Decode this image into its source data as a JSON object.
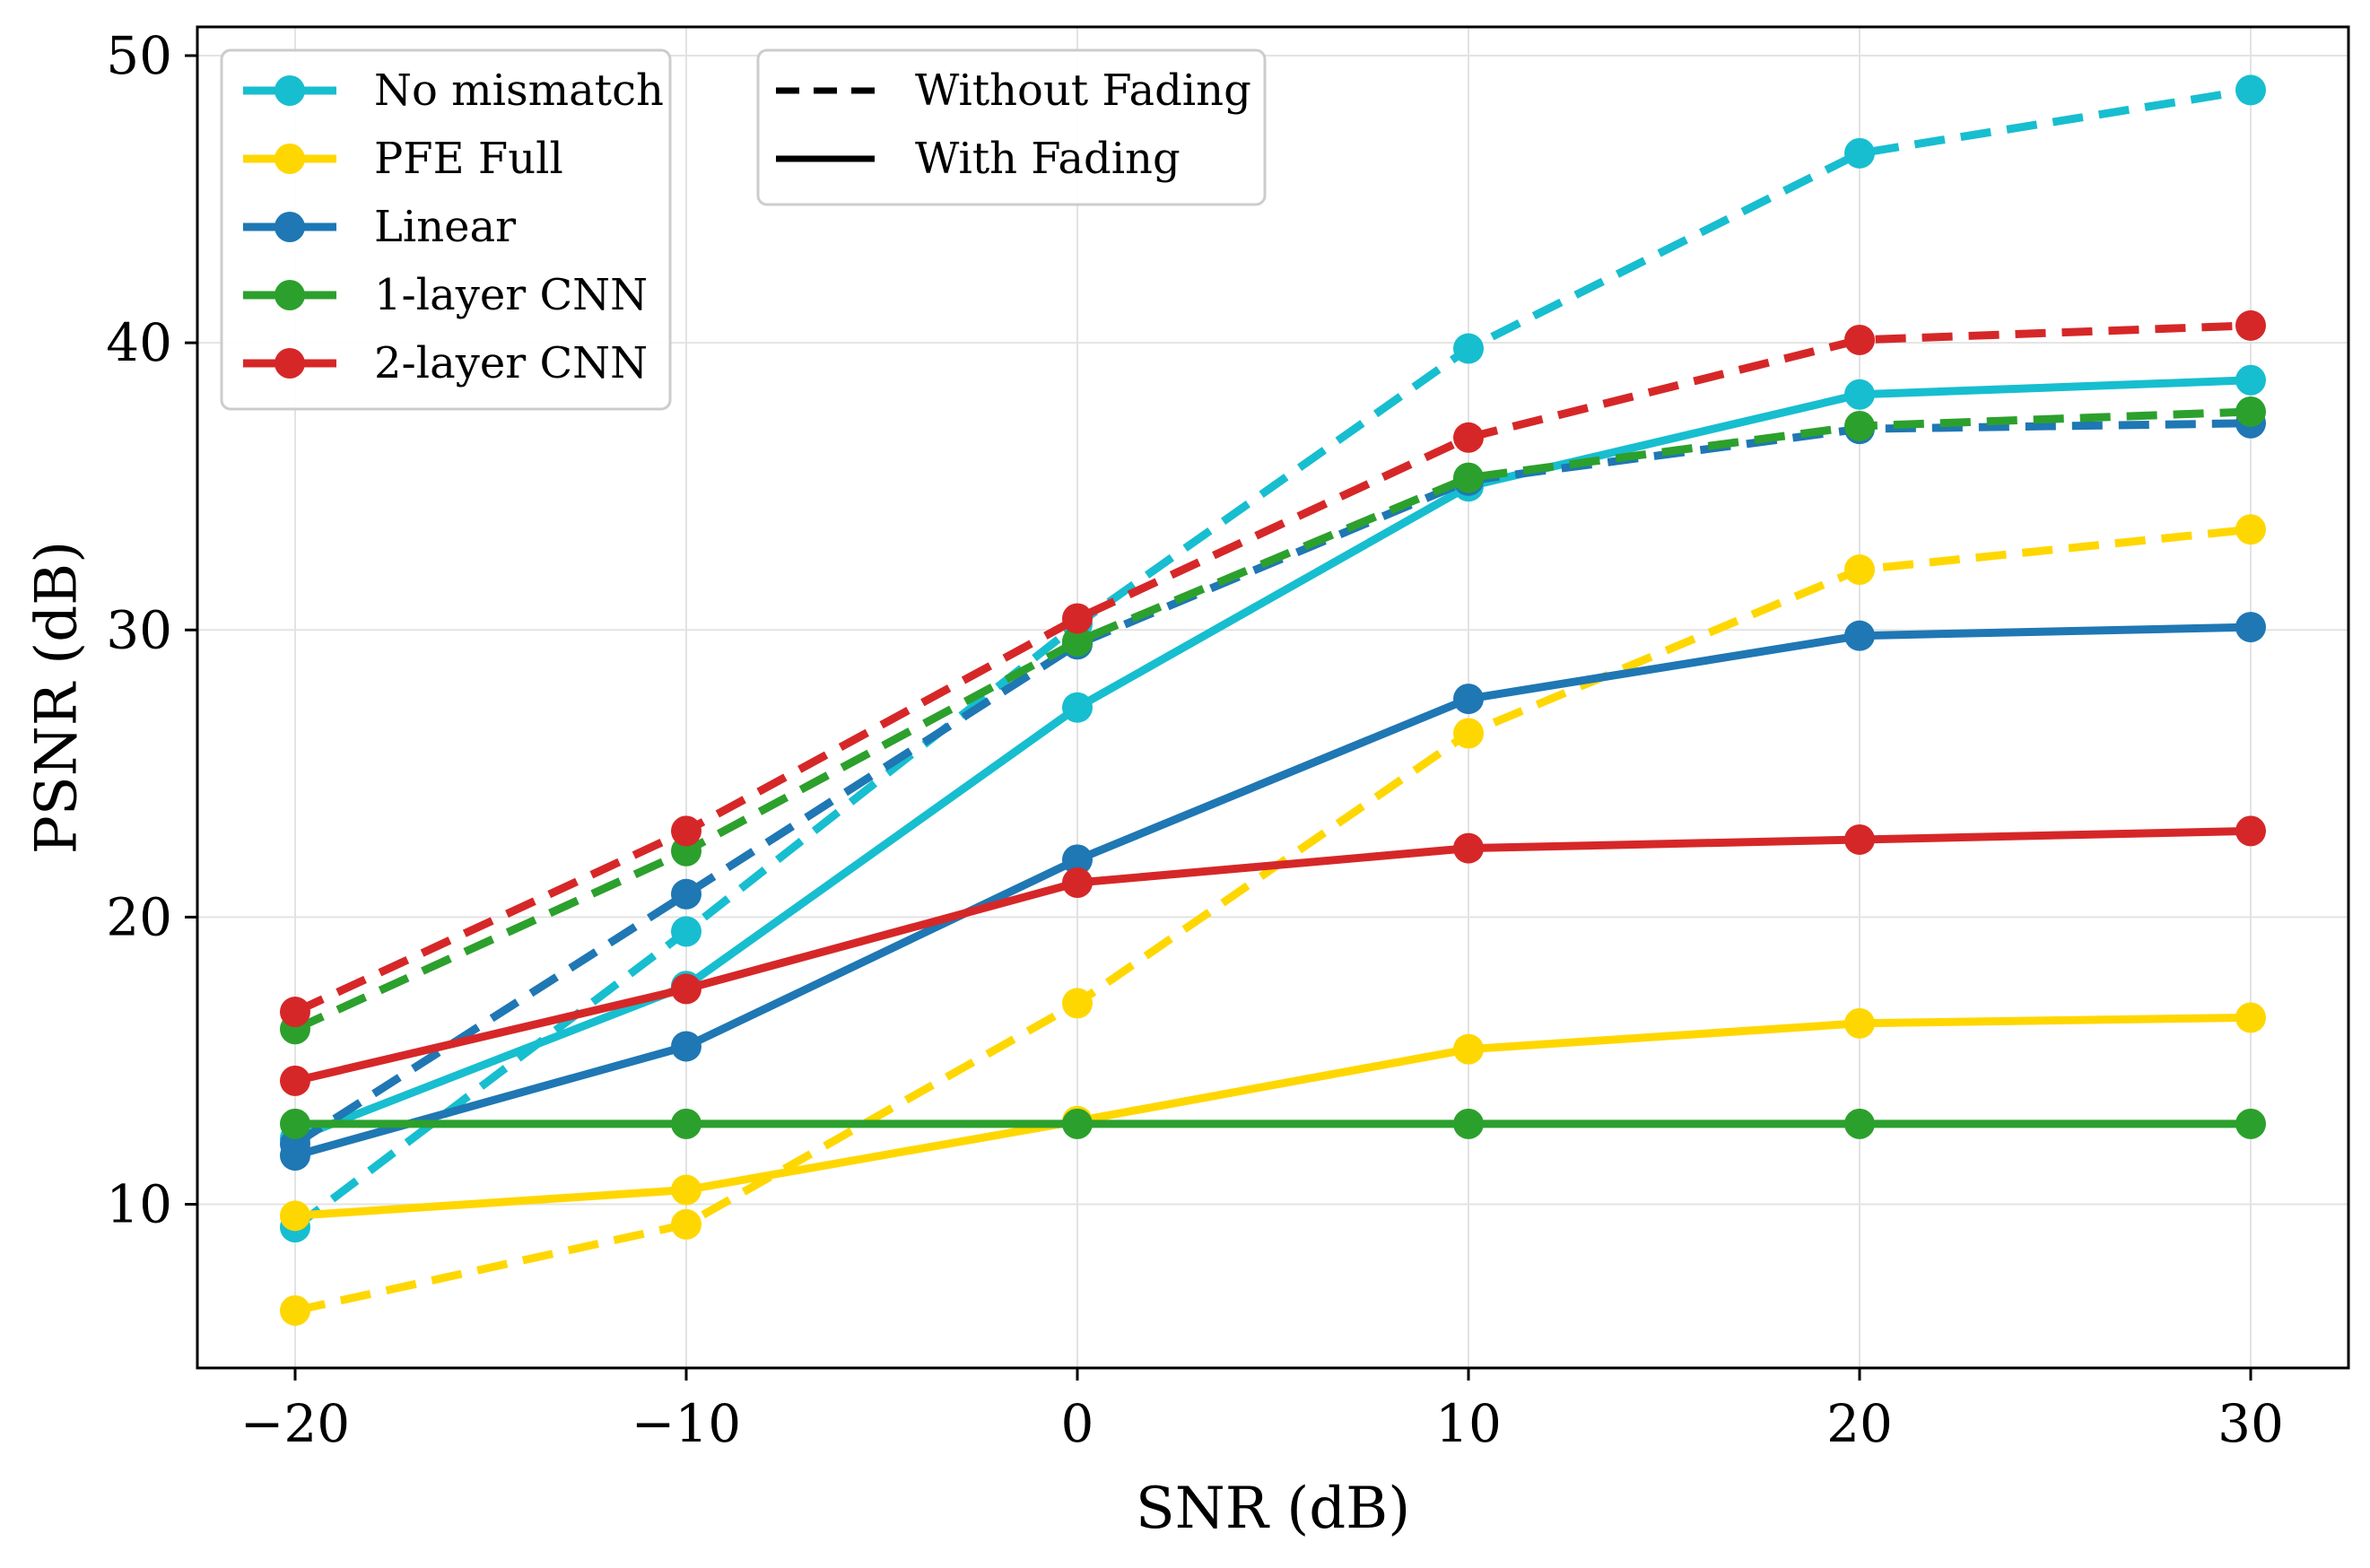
{
  "chart_data": {
    "type": "line",
    "title": "",
    "xlabel": "SNR (dB)",
    "ylabel": "PSNR (dB)",
    "x": [
      -20,
      -10,
      0,
      10,
      20,
      30
    ],
    "xlim": [
      -22.5,
      32.5
    ],
    "ylim": [
      4.3,
      51
    ],
    "xticks": [
      -20,
      -10,
      0,
      10,
      20,
      30
    ],
    "xtick_labels": [
      "−20",
      "−10",
      "0",
      "10",
      "20",
      "30"
    ],
    "yticks": [
      10,
      20,
      30,
      40,
      50
    ],
    "ytick_labels": [
      "10",
      "20",
      "30",
      "40",
      "50"
    ],
    "grid": true,
    "series": [
      {
        "name": "No mismatch",
        "color": "#17becf",
        "style": "dashed",
        "values": [
          9.2,
          19.5,
          30.2,
          39.8,
          46.6,
          48.8
        ]
      },
      {
        "name": "No mismatch",
        "color": "#17becf",
        "style": "solid",
        "values": [
          12.3,
          17.6,
          27.3,
          35.0,
          38.2,
          38.7
        ]
      },
      {
        "name": "PFE Full",
        "color": "#ffd700",
        "style": "dashed",
        "values": [
          6.3,
          9.3,
          17.0,
          26.4,
          32.1,
          33.5
        ]
      },
      {
        "name": "PFE Full",
        "color": "#ffd700",
        "style": "solid",
        "values": [
          9.6,
          10.5,
          12.9,
          15.4,
          16.3,
          16.5
        ]
      },
      {
        "name": "Linear",
        "color": "#1f77b4",
        "style": "dashed",
        "values": [
          12.1,
          20.8,
          29.5,
          35.2,
          37.0,
          37.2
        ]
      },
      {
        "name": "Linear",
        "color": "#1f77b4",
        "style": "solid",
        "values": [
          11.7,
          15.5,
          22.0,
          27.6,
          29.8,
          30.1
        ]
      },
      {
        "name": "1-layer CNN",
        "color": "#2ca02c",
        "style": "dashed",
        "values": [
          16.1,
          22.3,
          29.6,
          35.3,
          37.1,
          37.6
        ]
      },
      {
        "name": "1-layer CNN",
        "color": "#2ca02c",
        "style": "solid",
        "values": [
          12.8,
          12.8,
          12.8,
          12.8,
          12.8,
          12.8
        ]
      },
      {
        "name": "2-layer CNN",
        "color": "#d62728",
        "style": "dashed",
        "values": [
          16.7,
          23.0,
          30.4,
          36.7,
          40.1,
          40.6
        ]
      },
      {
        "name": "2-layer CNN",
        "color": "#d62728",
        "style": "solid",
        "values": [
          14.3,
          17.5,
          21.2,
          22.4,
          22.7,
          23.0
        ]
      }
    ],
    "legend_models": {
      "placement": "top-left",
      "entries": [
        {
          "label": "No mismatch",
          "color": "#17becf"
        },
        {
          "label": "PFE Full",
          "color": "#ffd700"
        },
        {
          "label": "Linear",
          "color": "#1f77b4"
        },
        {
          "label": "1-layer CNN",
          "color": "#2ca02c"
        },
        {
          "label": "2-layer CNN",
          "color": "#d62728"
        }
      ]
    },
    "legend_styles": {
      "placement": "top-center",
      "entries": [
        {
          "label": "Without Fading",
          "style": "dashed"
        },
        {
          "label": "With Fading",
          "style": "solid"
        }
      ]
    }
  }
}
